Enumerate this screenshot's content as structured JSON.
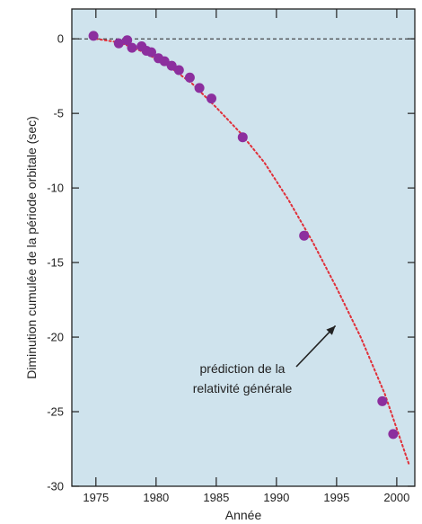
{
  "colors": {
    "plot_background": "#cfe3ed",
    "points": "#8c2f9e",
    "prediction_curve": "#e0303a",
    "axes": "#222222"
  },
  "chart_data": {
    "type": "scatter",
    "title": "",
    "xlabel": "Année",
    "ylabel": "Diminution cumulée de la période orbitale (sec)",
    "xlim": [
      1973,
      2001.5
    ],
    "ylim": [
      -30,
      2
    ],
    "x_ticks": [
      1975,
      1980,
      1985,
      1990,
      1995,
      2000
    ],
    "y_ticks": [
      0,
      -5,
      -10,
      -15,
      -20,
      -25,
      -30
    ],
    "grid": false,
    "zero_reference_line": {
      "y": 0,
      "style": "dashed"
    },
    "series": [
      {
        "kind": "points",
        "x": [
          1974.8,
          1976.9,
          1977.6,
          1978.0,
          1978.8,
          1979.2,
          1979.6,
          1980.2,
          1980.7,
          1981.3,
          1981.9,
          1982.8,
          1983.6,
          1984.6,
          1987.2,
          1992.3,
          1998.8,
          1999.7
        ],
        "y": [
          0.2,
          -0.3,
          -0.1,
          -0.6,
          -0.5,
          -0.8,
          -0.9,
          -1.3,
          -1.5,
          -1.8,
          -2.1,
          -2.6,
          -3.3,
          -4.0,
          -6.6,
          -13.2,
          -24.3,
          -26.5
        ]
      },
      {
        "kind": "prediction_curve",
        "style": "dotted",
        "x": [
          1975,
          1977,
          1979,
          1981,
          1983,
          1985,
          1987,
          1989,
          1991,
          1993,
          1995,
          1997,
          1999,
          2001
        ],
        "y": [
          0,
          -0.25,
          -0.9,
          -1.8,
          -3.0,
          -4.6,
          -6.3,
          -8.3,
          -10.8,
          -13.6,
          -16.7,
          -20.0,
          -23.8,
          -28.5
        ]
      }
    ],
    "annotations": [
      {
        "line1": "prédiction de la",
        "line2": "relativité générale",
        "points_to": [
          1995.5,
          -19
        ]
      }
    ]
  }
}
